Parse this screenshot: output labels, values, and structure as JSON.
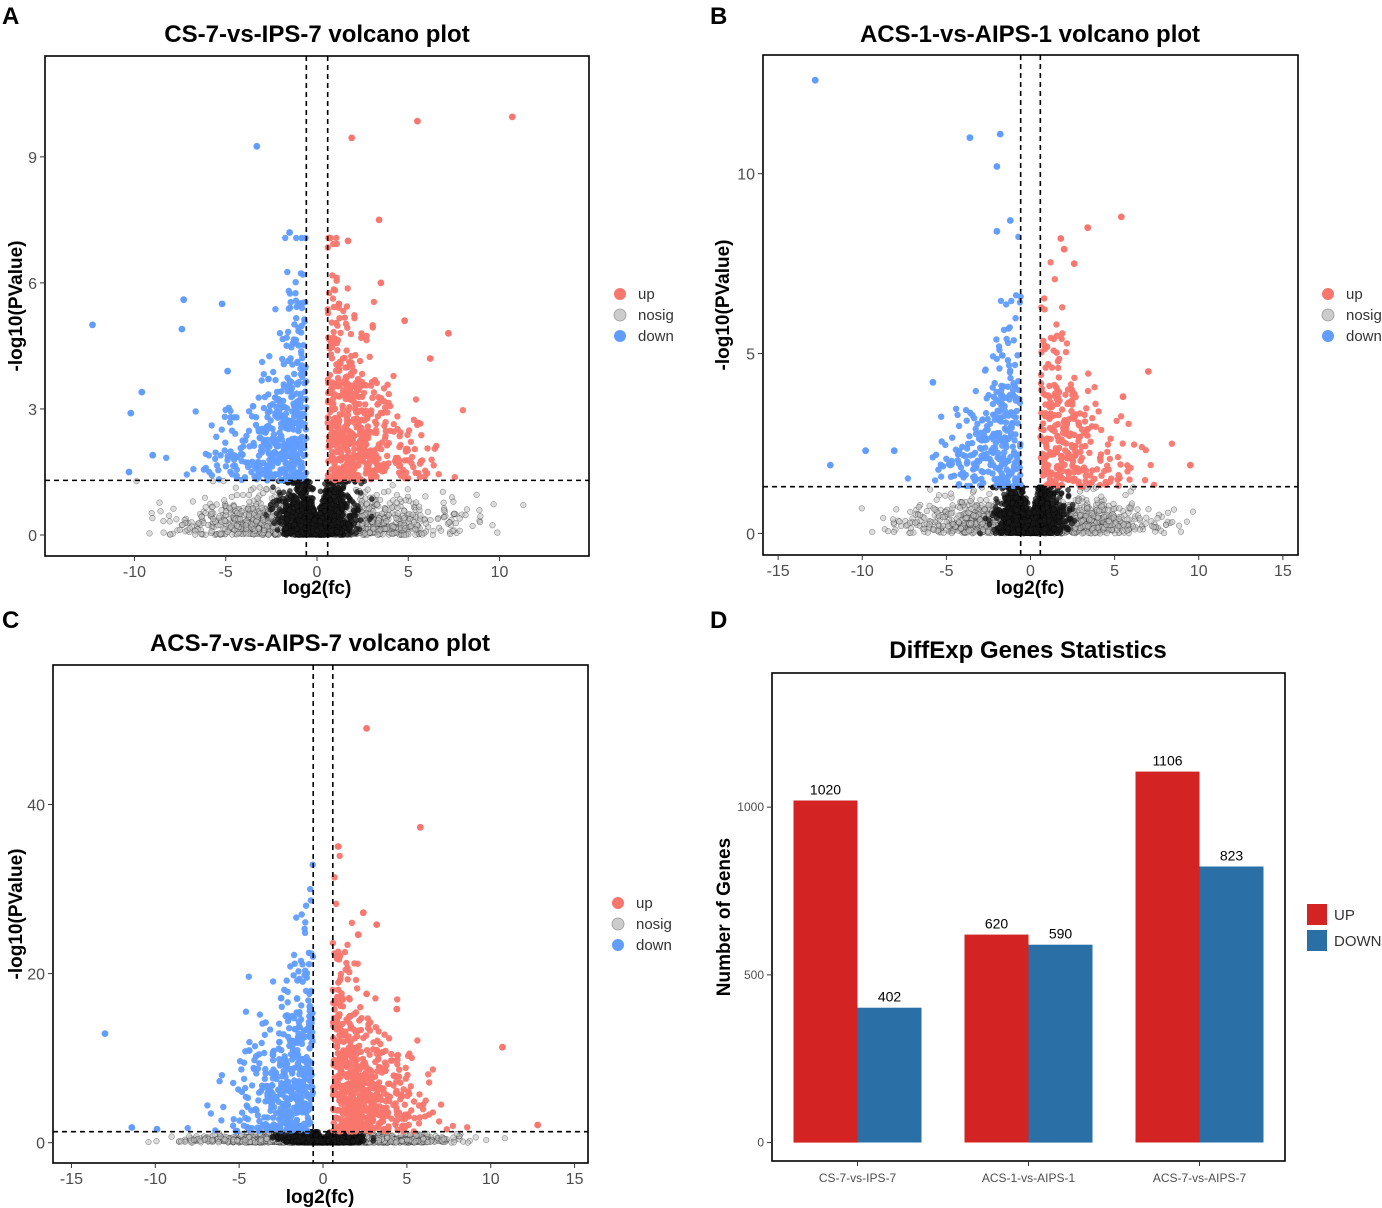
{
  "chart_data": [
    {
      "type": "scatter",
      "panel": "A",
      "title": "CS-7-vs-IPS-7 volcano plot",
      "xlabel": "log2(fc)",
      "ylabel": "-log10(PValue)",
      "xlim": [
        -14.9,
        14.9
      ],
      "ylim": [
        -0.5,
        11.4
      ],
      "xticks": [
        -10,
        -5,
        0,
        5,
        10
      ],
      "yticks": [
        0,
        3,
        6,
        9
      ],
      "xtick_labels": [
        "-10",
        "-5",
        "0",
        "5",
        "10"
      ],
      "ytick_labels": [
        "0",
        "3",
        "6",
        "9"
      ],
      "fc_threshold": 0.585,
      "p_threshold": 1.3,
      "legend": [
        {
          "label": "up",
          "color": "#F8766D"
        },
        {
          "label": "nosig",
          "color": "#BFBFBF"
        },
        {
          "label": "down",
          "color": "#619CFF"
        }
      ],
      "highlight_points": {
        "up": [
          [
            10.7,
            9.95
          ],
          [
            5.5,
            9.85
          ],
          [
            1.9,
            9.45
          ],
          [
            3.4,
            7.5
          ],
          [
            1.7,
            7.0
          ],
          [
            3.5,
            6.0
          ],
          [
            7.2,
            4.8
          ],
          [
            4.8,
            5.1
          ],
          [
            1.2,
            5.5
          ],
          [
            6.2,
            4.2
          ]
        ],
        "down": [
          [
            -3.3,
            9.25
          ],
          [
            -1.5,
            7.2
          ],
          [
            -12.3,
            5.0
          ],
          [
            -7.3,
            5.6
          ],
          [
            -7.4,
            4.9
          ],
          [
            -5.2,
            5.5
          ],
          [
            -9.6,
            3.4
          ],
          [
            -10.2,
            2.9
          ],
          [
            -4.9,
            3.9
          ],
          [
            -9.0,
            1.9
          ],
          [
            -10.3,
            1.5
          ]
        ]
      },
      "cloud": {
        "up_n": 520,
        "down_n": 440,
        "nosig_n": 1500,
        "x_range": [
          -11.3,
          11.3
        ]
      }
    },
    {
      "type": "scatter",
      "panel": "B",
      "title": "ACS-1-vs-AIPS-1 volcano plot",
      "xlabel": "log2(fc)",
      "ylabel": "-log10(PValue)",
      "xlim": [
        -15.9,
        15.9
      ],
      "ylim": [
        -0.6,
        13.3
      ],
      "xticks": [
        -15,
        -10,
        -5,
        0,
        5,
        10,
        15
      ],
      "yticks": [
        0,
        5,
        10
      ],
      "xtick_labels": [
        "-15",
        "-10",
        "-5",
        "0",
        "5",
        "10",
        "15"
      ],
      "ytick_labels": [
        "0",
        "5",
        "10"
      ],
      "fc_threshold": 0.585,
      "p_threshold": 1.3,
      "legend": [
        {
          "label": "up",
          "color": "#F8766D"
        },
        {
          "label": "nosig",
          "color": "#BFBFBF"
        },
        {
          "label": "down",
          "color": "#619CFF"
        }
      ],
      "highlight_points": {
        "up": [
          [
            5.4,
            8.8
          ],
          [
            3.4,
            8.5
          ],
          [
            1.8,
            8.2
          ],
          [
            2.0,
            7.9
          ],
          [
            2.6,
            7.5
          ],
          [
            7.0,
            4.5
          ],
          [
            9.5,
            1.9
          ],
          [
            5.5,
            3.8
          ]
        ],
        "down": [
          [
            -12.8,
            12.6
          ],
          [
            -1.8,
            11.1
          ],
          [
            -3.6,
            11.0
          ],
          [
            -2.0,
            10.2
          ],
          [
            -2.0,
            8.4
          ],
          [
            -1.2,
            8.7
          ],
          [
            -5.8,
            4.2
          ],
          [
            -11.9,
            1.9
          ],
          [
            -9.8,
            2.3
          ],
          [
            -8.1,
            2.3
          ]
        ]
      },
      "cloud": {
        "up_n": 300,
        "down_n": 290,
        "nosig_n": 1500,
        "x_range": [
          -11.0,
          11.0
        ]
      }
    },
    {
      "type": "scatter",
      "panel": "C",
      "title": "ACS-7-vs-AIPS-7 volcano plot",
      "xlabel": "log2(fc)",
      "ylabel": "-log10(PValue)",
      "xlim": [
        -16.1,
        15.8
      ],
      "ylim": [
        -2.4,
        56.5
      ],
      "xticks": [
        -15,
        -10,
        -5,
        0,
        5,
        10,
        15
      ],
      "yticks": [
        0,
        20,
        40
      ],
      "xtick_labels": [
        "-15",
        "-10",
        "-5",
        "0",
        "5",
        "10",
        "15"
      ],
      "ytick_labels": [
        "0",
        "20",
        "40"
      ],
      "fc_threshold": 0.585,
      "p_threshold": 1.3,
      "legend": [
        {
          "label": "up",
          "color": "#F8766D"
        },
        {
          "label": "nosig",
          "color": "#BFBFBF"
        },
        {
          "label": "down",
          "color": "#619CFF"
        }
      ],
      "highlight_points": {
        "up": [
          [
            2.6,
            49.0
          ],
          [
            5.8,
            37.3
          ],
          [
            2.4,
            27.2
          ],
          [
            3.2,
            25.8
          ],
          [
            2.1,
            24.6
          ],
          [
            2.6,
            17.6
          ],
          [
            10.7,
            11.3
          ],
          [
            4.4,
            15.8
          ],
          [
            12.8,
            2.1
          ]
        ],
        "down": [
          [
            -13.0,
            12.9
          ],
          [
            -2.5,
            17.1
          ],
          [
            -2.6,
            11.9
          ],
          [
            -4.4,
            10.9
          ],
          [
            -11.4,
            1.8
          ],
          [
            -9.9,
            1.6
          ]
        ]
      },
      "cloud": {
        "up_n": 600,
        "down_n": 430,
        "nosig_n": 1700,
        "x_range": [
          -12.8,
          12.8
        ]
      }
    },
    {
      "type": "bar",
      "panel": "D",
      "title": "DiffExp Genes Statistics",
      "xlabel": "",
      "ylabel": "Number of Genes",
      "categories": [
        "CS-7-vs-IPS-7",
        "ACS-1-vs-AIPS-1",
        "ACS-7-vs-AIPS-7"
      ],
      "series": [
        {
          "name": "UP",
          "color": "#D32322",
          "values": [
            1020,
            620,
            1106
          ]
        },
        {
          "name": "DOWN",
          "color": "#2B6FA7",
          "values": [
            402,
            590,
            823
          ]
        }
      ],
      "ylim": [
        -55,
        1400
      ],
      "yticks": [
        0,
        500,
        1000
      ],
      "ytick_labels": [
        "0",
        "500",
        "1000"
      ],
      "legend": [
        {
          "label": "UP",
          "color": "#D32322"
        },
        {
          "label": "DOWN",
          "color": "#2B6FA7"
        }
      ]
    }
  ]
}
